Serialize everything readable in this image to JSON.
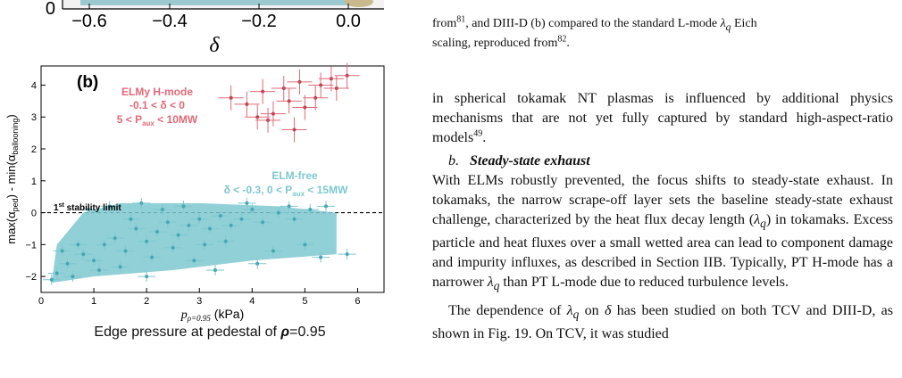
{
  "panel_a_strip": {
    "x_ticks": [
      "−0.6",
      "−0.4",
      "−0.2",
      "0.0"
    ],
    "y_tick": "0",
    "x_label": "δ"
  },
  "panel_b": {
    "label": "(b)",
    "y_label_main": "max(α",
    "y_label_sub1": "ped",
    "y_label_mid": ") - min(α",
    "y_label_sub2": "ballooning",
    "y_label_end": ")",
    "x_label_main": "p",
    "x_label_sub": "ρ=0.95",
    "x_label_unit": " (kPa)",
    "stability_label_1": "1",
    "stability_label_sup": "st",
    "stability_label_2": " stability limit",
    "elmy_title": "ELMy H-mode",
    "elmy_cond1": "-0.1 < δ < 0",
    "elmy_cond2a": "5 < P",
    "elmy_cond2sub": "aux",
    "elmy_cond2b": " < 10MW",
    "elmfree_title": "ELM-free",
    "elmfree_cond_a": "δ < -0.3, 0 < P",
    "elmfree_cond_sub": "aux",
    "elmfree_cond_b": " < 15MW",
    "caption_pre": "Edge pressure at pedestal of ",
    "caption_rho": "ρ",
    "caption_post": "=0.95"
  },
  "chart_data": {
    "type": "scatter",
    "x": [],
    "xlim": [
      0,
      6.5
    ],
    "ylim": [
      -2.5,
      4.6
    ],
    "xticks": [
      0,
      1,
      2,
      3,
      4,
      5,
      6
    ],
    "yticks": [
      -2,
      -1,
      0,
      1,
      2,
      3,
      4
    ],
    "reference_line": 0,
    "colors": {
      "elm_free": "#7ec8d0",
      "elmy": "#e06a78"
    },
    "elmy_points": [
      [
        4.2,
        3.8
      ],
      [
        4.6,
        3.9
      ],
      [
        4.9,
        4.1
      ],
      [
        5.2,
        3.6
      ],
      [
        5.5,
        4.2
      ],
      [
        5.8,
        4.3
      ],
      [
        3.9,
        3.4
      ],
      [
        4.4,
        3.1
      ],
      [
        4.7,
        3.5
      ],
      [
        5.0,
        3.3
      ],
      [
        3.6,
        3.6
      ],
      [
        4.1,
        3.0
      ],
      [
        5.3,
        4.0
      ],
      [
        5.6,
        3.9
      ],
      [
        4.8,
        2.6
      ],
      [
        4.3,
        2.9
      ]
    ],
    "elm_free_points": [
      [
        0.3,
        -1.9
      ],
      [
        0.5,
        -1.6
      ],
      [
        0.8,
        -1.3
      ],
      [
        1.0,
        -1.5
      ],
      [
        1.2,
        -1.0
      ],
      [
        1.4,
        -0.8
      ],
      [
        1.6,
        -1.2
      ],
      [
        1.8,
        -0.5
      ],
      [
        2.0,
        -0.9
      ],
      [
        2.2,
        -0.6
      ],
      [
        2.4,
        -0.3
      ],
      [
        2.6,
        -0.7
      ],
      [
        2.8,
        -0.4
      ],
      [
        3.0,
        -0.2
      ],
      [
        3.2,
        -0.5
      ],
      [
        3.4,
        -0.1
      ],
      [
        3.6,
        -0.4
      ],
      [
        3.8,
        -0.2
      ],
      [
        4.0,
        0.1
      ],
      [
        4.2,
        -0.3
      ],
      [
        4.5,
        0.0
      ],
      [
        4.8,
        -0.2
      ],
      [
        5.1,
        0.1
      ],
      [
        5.4,
        0.2
      ],
      [
        5.8,
        -1.3
      ],
      [
        0.6,
        -2.0
      ],
      [
        1.1,
        -1.8
      ],
      [
        1.5,
        -1.7
      ],
      [
        2.1,
        -1.4
      ],
      [
        2.5,
        -1.1
      ],
      [
        3.1,
        -1.0
      ],
      [
        3.5,
        -0.9
      ],
      [
        0.9,
        0.1
      ],
      [
        1.3,
        0.2
      ],
      [
        1.9,
        0.3
      ],
      [
        2.3,
        0.1
      ],
      [
        2.7,
        0.2
      ],
      [
        0.4,
        -1.2
      ],
      [
        1.7,
        -0.2
      ],
      [
        2.9,
        -1.5
      ],
      [
        4.4,
        -1.2
      ],
      [
        5.0,
        -1.0
      ],
      [
        5.3,
        -1.4
      ],
      [
        3.9,
        0.3
      ],
      [
        4.7,
        0.2
      ],
      [
        0.2,
        -2.1
      ],
      [
        0.7,
        -1.0
      ],
      [
        2.0,
        -2.0
      ],
      [
        3.3,
        -1.8
      ],
      [
        4.1,
        -1.6
      ]
    ]
  },
  "caption_a_tail": {
    "line1_part1": "from",
    "line1_ref1": "81",
    "line1_part2": ", and DIII-D (b) compared to the standard L-mode ",
    "line1_lambda": "λ",
    "line1_q": "q",
    "line1_part3": " Eich",
    "line2_part1": "scaling, reproduced from",
    "line2_ref": "82",
    "line2_part2": "."
  },
  "body_text": {
    "para1": "in spherical tokamak NT plasmas is influenced by additional physics mechanisms that are not yet fully captured by standard high-aspect-ratio models",
    "para1_ref": "49",
    "para1_end": ".",
    "section_label": "b.",
    "section_title": "Steady-state exhaust",
    "para2_a": "With ELMs robustly prevented, the focus shifts to steady-state exhaust. In tokamaks, the narrow scrape-off layer sets the baseline steady-state exhaust challenge, characterized by the heat flux decay length (",
    "para2_lambda": "λ",
    "para2_q": "q",
    "para2_b": ") in tokamaks. Excess particle and heat fluxes over a small wetted area can lead to component damage and impurity influxes, as described in Section IIB. Typically, PT H-mode has a narrower ",
    "para2_c": " than PT L-mode due to reduced turbulence levels.",
    "para3_a": "The dependence of ",
    "para3_b": " on ",
    "para3_delta": "δ",
    "para3_c": " has been studied on both TCV and DIII-D, as shown in Fig. 19. On TCV, it was studied"
  }
}
